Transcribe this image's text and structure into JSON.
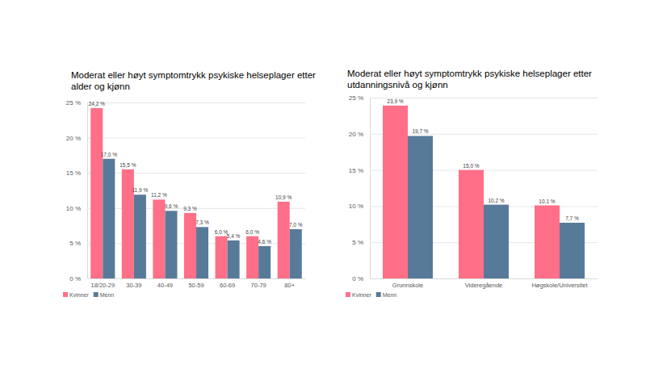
{
  "chart_data": [
    {
      "type": "bar",
      "title": "Moderat eller høyt symptomtrykk psykiske helseplager etter alder og kjønn",
      "categories": [
        "18/20-29",
        "30-39",
        "40-49",
        "50-59",
        "60-69",
        "70-79",
        "80+"
      ],
      "series": [
        {
          "name": "Kvinner",
          "color": "#ff6f87",
          "values": [
            24.2,
            15.5,
            11.2,
            9.3,
            6.0,
            6.0,
            10.9
          ],
          "value_labels": [
            "24,2 %",
            "15,5 %",
            "11,2 %",
            "9,3 %",
            "6,0 %",
            "6,0 %",
            "10,9 %"
          ]
        },
        {
          "name": "Menn",
          "color": "#587a99",
          "values": [
            17.0,
            11.9,
            9.6,
            7.3,
            5.4,
            4.6,
            7.0
          ],
          "value_labels": [
            "17,0 %",
            "11,9 %",
            "9,6 %",
            "7,3 %",
            "5,4 %",
            "4,6 %",
            "7,0 %"
          ]
        }
      ],
      "ylim": [
        0,
        25
      ],
      "yticks": [
        {
          "value": 0,
          "label": "0 %"
        },
        {
          "value": 5,
          "label": "5 %"
        },
        {
          "value": 10,
          "label": "10 %"
        },
        {
          "value": 15,
          "label": "15 %"
        },
        {
          "value": 20,
          "label": "20 %"
        },
        {
          "value": 25,
          "label": "25 %"
        }
      ],
      "grid": true,
      "legend": "bottom-left",
      "data_labels": true
    },
    {
      "type": "bar",
      "title": "Moderat eller høyt symptomtrykk psykiske helseplager etter utdanningsnivå og kjønn",
      "categories": [
        "Grunnskole",
        "Videregående",
        "Høgskole/Universitet"
      ],
      "series": [
        {
          "name": "Kvinner",
          "color": "#ff6f87",
          "values": [
            23.9,
            15.0,
            10.1
          ],
          "value_labels": [
            "23,9 %",
            "15,0 %",
            "10,1 %"
          ]
        },
        {
          "name": "Menn",
          "color": "#587a99",
          "values": [
            19.7,
            10.2,
            7.7
          ],
          "value_labels": [
            "19,7 %",
            "10,2 %",
            "7,7 %"
          ]
        }
      ],
      "ylim": [
        0,
        25
      ],
      "yticks": [
        {
          "value": 0,
          "label": "0 %"
        },
        {
          "value": 5,
          "label": "5 %"
        },
        {
          "value": 10,
          "label": "10 %"
        },
        {
          "value": 15,
          "label": "15 %"
        },
        {
          "value": 20,
          "label": "20 %"
        },
        {
          "value": 25,
          "label": "25 %"
        }
      ],
      "grid": true,
      "legend": "bottom-left",
      "data_labels": true
    }
  ]
}
